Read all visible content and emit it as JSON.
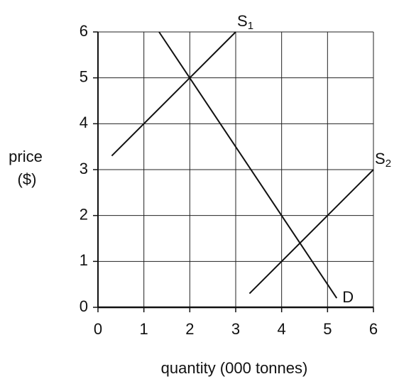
{
  "chart_data": {
    "type": "line",
    "y_label": [
      "price",
      "($)"
    ],
    "x_label": "quantity (000 tonnes)",
    "xlim": [
      0,
      6
    ],
    "xticks": [
      0,
      1,
      2,
      3,
      4,
      5,
      6
    ],
    "ylim": [
      0,
      6
    ],
    "yticks": [
      0,
      1,
      2,
      3,
      4,
      5,
      6
    ],
    "grid": true,
    "series": [
      {
        "name": "S",
        "subscript": "1",
        "color": "#111111",
        "x": [
          0.3,
          3
        ],
        "values": [
          3.3,
          6
        ]
      },
      {
        "name": "S",
        "subscript": "2",
        "color": "#111111",
        "x": [
          3.3,
          6
        ],
        "values": [
          0.3,
          3
        ]
      },
      {
        "name": "D",
        "color": "#111111",
        "x": [
          1.33,
          5.2
        ],
        "values": [
          6,
          0.2
        ]
      }
    ]
  }
}
